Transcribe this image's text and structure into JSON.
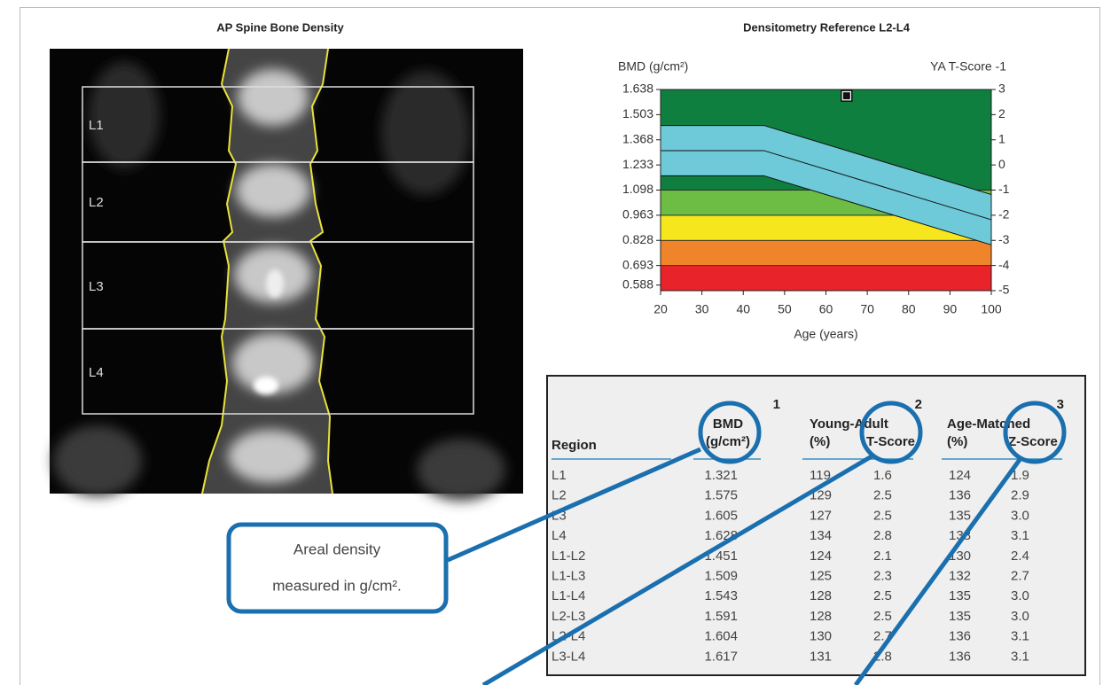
{
  "spine_panel": {
    "title": "AP Spine Bone Density",
    "regions": [
      "L1",
      "L2",
      "L3",
      "L4"
    ]
  },
  "chart_data": {
    "type": "reference",
    "title": "Densitometry Reference L2-L4",
    "ylabel": "BMD (g/cm²)",
    "y2label": "YA T-Score -1",
    "xlabel": "Age (years)",
    "xlim": [
      20,
      100
    ],
    "xticks": [
      20,
      30,
      40,
      50,
      60,
      70,
      80,
      90,
      100
    ],
    "ylim": [
      0.558,
      1.638
    ],
    "yticks": [
      0.588,
      0.693,
      0.828,
      0.963,
      1.098,
      1.233,
      1.368,
      1.503,
      1.638
    ],
    "y2lim": [
      -5,
      3
    ],
    "y2ticks": [
      -5,
      -4,
      -3,
      -2,
      -1,
      0,
      1,
      2,
      3
    ],
    "zones": {
      "bounds": [
        0.693,
        0.828,
        0.963,
        1.098
      ],
      "colors": [
        "#e8232a",
        "#f0842a",
        "#f5e61e",
        "#6dbd45",
        "#0f7f3f"
      ]
    },
    "reference": {
      "x": [
        20,
        45,
        100
      ],
      "upper": [
        1.445,
        1.445,
        1.074
      ],
      "mean": [
        1.31,
        1.31,
        0.939
      ],
      "lower": [
        1.175,
        1.175,
        0.804
      ],
      "color": "#6ecad9"
    },
    "patient": {
      "x": 65,
      "value": 1.604
    }
  },
  "table": {
    "group_numbers": [
      "1",
      "2",
      "3"
    ],
    "header": {
      "region": "Region",
      "bmd": [
        "BMD",
        "(g/cm²)"
      ],
      "young_adult": "Young-Adult",
      "age_matched": "Age-Matched",
      "ya_pct": "(%)",
      "t_score": "T-Score",
      "am_pct": "(%)",
      "z_score": "Z-Score"
    },
    "rows": [
      [
        "L1",
        "1.321",
        "119",
        "1.6",
        "124",
        "1.9"
      ],
      [
        "L2",
        "1.575",
        "129",
        "2.5",
        "136",
        "2.9"
      ],
      [
        "L3",
        "1.605",
        "127",
        "2.5",
        "135",
        "3.0"
      ],
      [
        "L4",
        "1.628",
        "134",
        "2.8",
        "138",
        "3.1"
      ],
      [
        "L1-L2",
        "1.451",
        "124",
        "2.1",
        "130",
        "2.4"
      ],
      [
        "L1-L3",
        "1.509",
        "125",
        "2.3",
        "132",
        "2.7"
      ],
      [
        "L1-L4",
        "1.543",
        "128",
        "2.5",
        "135",
        "3.0"
      ],
      [
        "L2-L3",
        "1.591",
        "128",
        "2.5",
        "135",
        "3.0"
      ],
      [
        "L2-L4",
        "1.604",
        "130",
        "2.7",
        "136",
        "3.1"
      ],
      [
        "L3-L4",
        "1.617",
        "131",
        "2.8",
        "136",
        "3.1"
      ]
    ]
  },
  "callout": {
    "lines": [
      "Areal density",
      "measured in g/cm²."
    ]
  }
}
